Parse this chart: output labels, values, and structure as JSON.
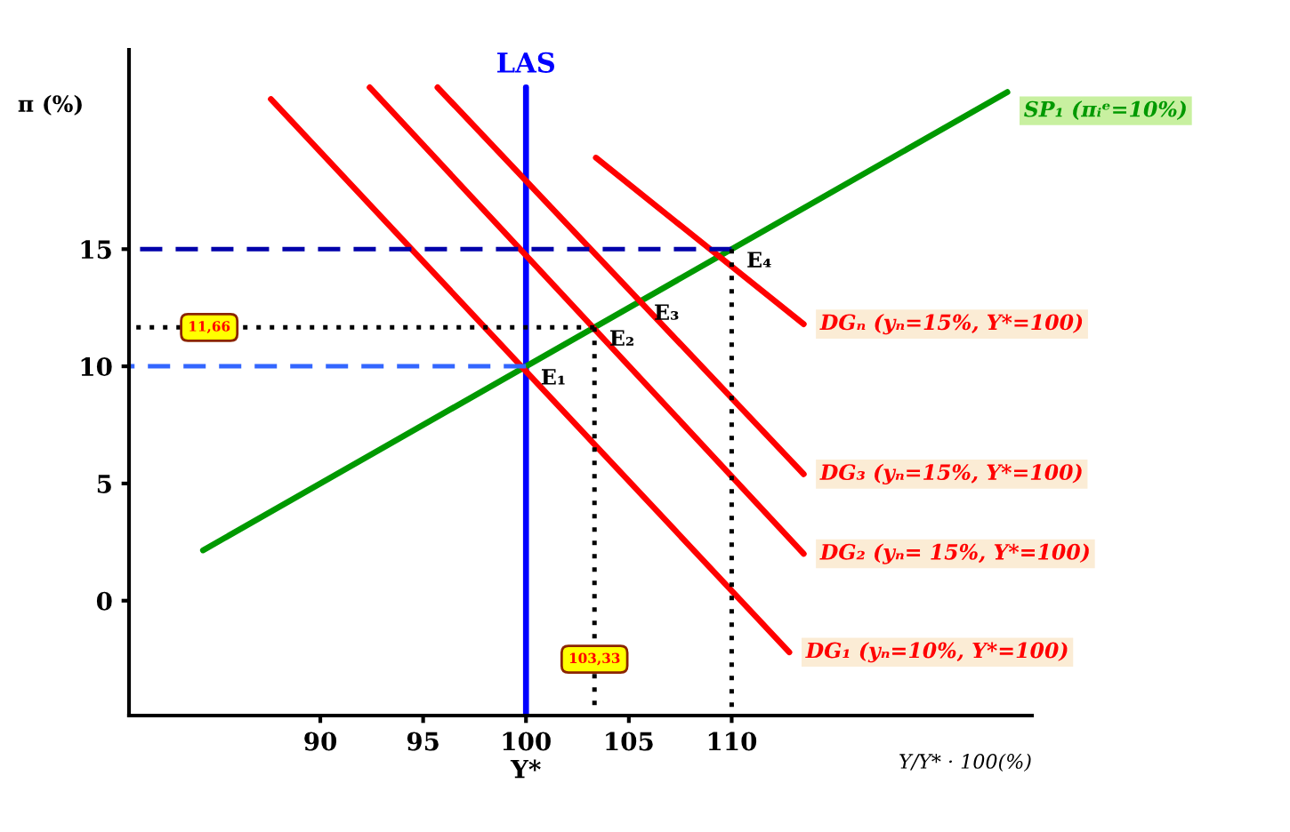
{
  "chart_data": {
    "type": "line",
    "xlabel": "Y/Y* · 100(%)",
    "ylabel": "π (%)",
    "xlim": [
      80.7,
      124.6
    ],
    "ylim": [
      -4.9,
      23.5
    ],
    "xticks": [
      90,
      95,
      {
        "value": 100,
        "label": "100\nY*"
      },
      105,
      110
    ],
    "yticks": [
      0,
      5,
      10,
      15
    ],
    "grid": false,
    "legend": false,
    "marker": "none",
    "series": [
      {
        "name": "LAS",
        "color": "#0000ff",
        "x": [
          100,
          100
        ],
        "values": [
          -4.9,
          21.9
        ],
        "line_style": "solid"
      },
      {
        "name": "SP₁ (πᵢᵉ=10%)",
        "color": "#009900",
        "x": [
          84.3,
          123.4
        ],
        "values": [
          2.15,
          21.7
        ],
        "line_style": "solid"
      },
      {
        "name": "DG₁ (yₙ=10%, Y*=100)",
        "color": "#ff0000",
        "x": [
          87.6,
          112.8
        ],
        "values": [
          21.4,
          -2.2
        ],
        "line_style": "solid"
      },
      {
        "name": "DG₂ (yₙ= 15%, Y*=100)",
        "color": "#ff0000",
        "x": [
          92.4,
          113.5
        ],
        "values": [
          21.9,
          2.0
        ],
        "line_style": "solid"
      },
      {
        "name": "DG₃ (yₙ=15%, Y*=100)",
        "color": "#ff0000",
        "x": [
          95.7,
          113.5
        ],
        "values": [
          21.9,
          5.4
        ],
        "line_style": "solid"
      },
      {
        "name": "DGₙ (yₙ=15%, Y*=100)",
        "color": "#ff0000",
        "x": [
          103.4,
          113.5
        ],
        "values": [
          18.9,
          11.8
        ],
        "line_style": "solid"
      },
      {
        "color": "#0000aa",
        "x": [
          80.7,
          110
        ],
        "values": [
          15,
          15
        ],
        "line_style": "dashed"
      },
      {
        "color": "#000000",
        "x": [
          80.7,
          103.33
        ],
        "values": [
          11.66,
          11.66
        ],
        "line_style": "dotted"
      },
      {
        "color": "#3366ff",
        "x": [
          80.7,
          100
        ],
        "values": [
          10,
          10
        ],
        "line_style": "dashed"
      },
      {
        "color": "#000000",
        "x": [
          103.33,
          103.33
        ],
        "values": [
          -4.9,
          11.66
        ],
        "line_style": "dotted"
      },
      {
        "color": "#000000",
        "x": [
          110,
          110
        ],
        "values": [
          -4.9,
          15
        ],
        "line_style": "dotted"
      }
    ],
    "annotations": [
      {
        "text": "11,66",
        "x": 84.6,
        "y": 11.66
      },
      {
        "text": "103,33",
        "x": 103.33,
        "y": -2.5
      },
      {
        "text": "E₁",
        "x": 100,
        "y": 10
      },
      {
        "text": "E₂",
        "x": 103.33,
        "y": 11.66
      },
      {
        "text": "E₃",
        "x": 105.5,
        "y": 12.76
      },
      {
        "text": "E₄",
        "x": 110,
        "y": 15
      }
    ]
  }
}
